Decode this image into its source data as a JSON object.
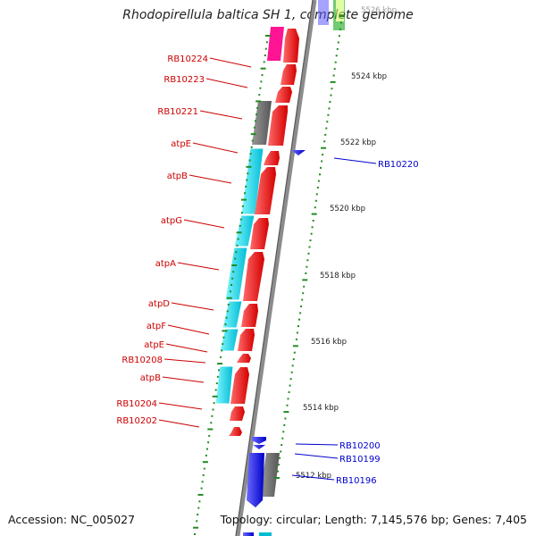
{
  "title": "Rhodopirellula baltica SH 1, complete genome",
  "accession": "Accession: NC_005027",
  "topology": "Topology: circular; Length: 7,145,576 bp; Genes: 7,405",
  "scale_labels": [
    "5526 kbp",
    "5524 kbp",
    "5522 kbp",
    "5520 kbp",
    "5518 kbp",
    "5516 kbp",
    "5514 kbp",
    "5512 kbp"
  ],
  "forward_labels": [
    "RB10224",
    "RB10223",
    "RB10221",
    "atpE",
    "atpB",
    "atpG",
    "atpA",
    "atpD",
    "atpF",
    "atpE",
    "RB10208",
    "atpB",
    "RB10204",
    "RB10202"
  ],
  "reverse_labels": [
    "RB10220",
    "RB10200",
    "RB10199",
    "RB10196"
  ],
  "colors": {
    "forward_cds": "#ff0000",
    "operon_feature": "#00e5ee",
    "pseudo_feature": "#6e6e6e",
    "reverse_cds": "#0000ff",
    "misc_feature": "#ff1493",
    "backbone": "#8c8c8c",
    "tick": "#228b22",
    "forward_label": "#cc0000",
    "reverse_label": "#0000cc"
  }
}
